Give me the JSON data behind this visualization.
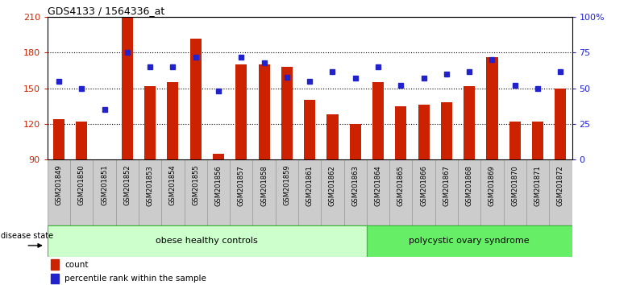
{
  "title": "GDS4133 / 1564336_at",
  "samples": [
    "GSM201849",
    "GSM201850",
    "GSM201851",
    "GSM201852",
    "GSM201853",
    "GSM201854",
    "GSM201855",
    "GSM201856",
    "GSM201857",
    "GSM201858",
    "GSM201859",
    "GSM201861",
    "GSM201862",
    "GSM201863",
    "GSM201864",
    "GSM201865",
    "GSM201866",
    "GSM201867",
    "GSM201868",
    "GSM201869",
    "GSM201870",
    "GSM201871",
    "GSM201872"
  ],
  "counts": [
    124,
    122,
    90,
    210,
    152,
    155,
    192,
    95,
    170,
    170,
    168,
    140,
    128,
    120,
    155,
    135,
    136,
    138,
    152,
    176,
    122,
    122,
    150
  ],
  "percentiles": [
    55,
    50,
    35,
    75,
    65,
    65,
    72,
    48,
    72,
    68,
    58,
    55,
    62,
    57,
    65,
    52,
    57,
    60,
    62,
    70,
    52,
    50,
    62
  ],
  "ymin": 90,
  "ymax": 210,
  "yticks_left": [
    90,
    120,
    150,
    180,
    210
  ],
  "right_ytick_pcts": [
    0,
    25,
    50,
    75,
    100
  ],
  "right_yticklabels": [
    "0",
    "25",
    "50",
    "75",
    "100%"
  ],
  "bar_color": "#cc2200",
  "dot_color": "#2222cc",
  "group1_label": "obese healthy controls",
  "group1_n": 14,
  "group2_label": "polycystic ovary syndrome",
  "group2_n": 9,
  "group1_facecolor": "#ccffcc",
  "group2_facecolor": "#66ee66",
  "group_border_color": "#33bb33",
  "group_label_text": "disease state",
  "legend_count_label": "count",
  "legend_pct_label": "percentile rank within the sample",
  "bar_bottom": 90,
  "grid_lines": [
    120,
    150,
    180
  ],
  "tick_bg_color": "#cccccc",
  "tick_border_color": "#999999"
}
